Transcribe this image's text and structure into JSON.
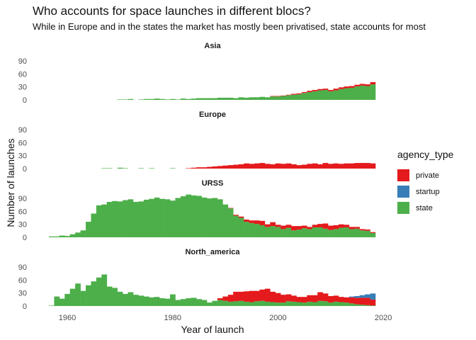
{
  "chart_data": {
    "type": "bar",
    "title": "Who accounts for space launches in different blocs?",
    "subtitle": "While in Europe and in the states the market has mostly been privatised, state accounts for most",
    "xlabel": "Year of launch",
    "ylabel": "Number of launches",
    "xlim": [
      1957,
      2018
    ],
    "x_ticks": [
      "1960",
      "1980",
      "2000",
      "2020"
    ],
    "y_ticks": [
      "0",
      "30",
      "60",
      "90"
    ],
    "ylim": [
      0,
      105
    ],
    "stacked": true,
    "grid": false,
    "legend": {
      "title": "agency_type",
      "placement": "right",
      "entries": [
        "private",
        "startup",
        "state"
      ]
    },
    "colors": {
      "private": "#E41A1C",
      "startup": "#377EB8",
      "state": "#4DAF4A"
    },
    "facets": [
      {
        "name": "Asia",
        "start_year": 1957,
        "series": {
          "state": [
            0,
            0,
            0,
            0,
            0,
            0,
            0,
            0,
            0,
            0,
            0,
            0,
            0,
            1,
            1,
            2,
            0,
            1,
            2,
            2,
            3,
            2,
            1,
            2,
            1,
            3,
            2,
            3,
            4,
            4,
            4,
            4,
            5,
            5,
            5,
            4,
            6,
            5,
            6,
            6,
            7,
            6,
            8,
            8,
            9,
            11,
            12,
            13,
            16,
            18,
            20,
            22,
            23,
            20,
            22,
            25,
            27,
            28,
            31,
            33,
            32,
            36
          ],
          "private": [
            0,
            0,
            0,
            0,
            0,
            0,
            0,
            0,
            0,
            0,
            0,
            0,
            0,
            0,
            0,
            0,
            0,
            0,
            0,
            0,
            0,
            0,
            0,
            0,
            0,
            0,
            0,
            0,
            0,
            0,
            0,
            0,
            0,
            0,
            0,
            0,
            0,
            0,
            0,
            0,
            0,
            0,
            1,
            1,
            1,
            1,
            2,
            2,
            2,
            3,
            3,
            3,
            3,
            3,
            4,
            4,
            4,
            4,
            4,
            4,
            4,
            5
          ],
          "startup": [
            0,
            0,
            0,
            0,
            0,
            0,
            0,
            0,
            0,
            0,
            0,
            0,
            0,
            0,
            0,
            0,
            0,
            0,
            0,
            0,
            0,
            0,
            0,
            0,
            0,
            0,
            0,
            0,
            0,
            0,
            0,
            0,
            0,
            0,
            0,
            0,
            0,
            0,
            0,
            0,
            0,
            0,
            0,
            0,
            0,
            0,
            0,
            0,
            0,
            0,
            0,
            0,
            0,
            0,
            0,
            0,
            0,
            0,
            0,
            0,
            0,
            0
          ]
        }
      },
      {
        "name": "Europe",
        "start_year": 1957,
        "series": {
          "state": [
            0,
            0,
            0,
            0,
            0,
            0,
            0,
            0,
            0,
            0,
            1,
            1,
            0,
            2,
            1,
            0,
            0,
            1,
            0,
            1,
            0,
            0,
            0,
            1,
            0,
            0,
            0,
            0,
            0,
            0,
            0,
            0,
            0,
            0,
            0,
            0,
            0,
            0,
            0,
            0,
            0,
            0,
            0,
            0,
            0,
            0,
            0,
            0,
            0,
            0,
            0,
            0,
            0,
            0,
            0,
            0,
            0,
            0,
            0,
            0,
            0,
            0
          ],
          "private": [
            0,
            0,
            0,
            0,
            0,
            0,
            0,
            0,
            0,
            0,
            0,
            0,
            0,
            0,
            0,
            0,
            0,
            0,
            0,
            0,
            0,
            0,
            0,
            0,
            0,
            0,
            1,
            2,
            3,
            3,
            4,
            5,
            6,
            7,
            8,
            9,
            10,
            12,
            11,
            12,
            13,
            11,
            10,
            12,
            11,
            12,
            10,
            8,
            9,
            11,
            12,
            10,
            13,
            11,
            12,
            11,
            12,
            12,
            13,
            13,
            13,
            12
          ],
          "startup": [
            0,
            0,
            0,
            0,
            0,
            0,
            0,
            0,
            0,
            0,
            0,
            0,
            0,
            0,
            0,
            0,
            0,
            0,
            0,
            0,
            0,
            0,
            0,
            0,
            0,
            0,
            0,
            0,
            0,
            0,
            0,
            0,
            0,
            0,
            0,
            0,
            0,
            0,
            0,
            0,
            0,
            0,
            0,
            0,
            0,
            0,
            0,
            0,
            0,
            0,
            0,
            0,
            0,
            0,
            0,
            0,
            0,
            0,
            0,
            0,
            0,
            0
          ]
        }
      },
      {
        "name": "URSS",
        "start_year": 1957,
        "series": {
          "state": [
            2,
            2,
            4,
            3,
            7,
            11,
            16,
            36,
            55,
            74,
            76,
            82,
            84,
            83,
            86,
            88,
            82,
            83,
            87,
            89,
            92,
            89,
            88,
            85,
            91,
            95,
            99,
            97,
            96,
            92,
            90,
            91,
            88,
            76,
            67,
            50,
            45,
            36,
            33,
            31,
            28,
            24,
            26,
            24,
            19,
            22,
            16,
            18,
            21,
            19,
            23,
            23,
            20,
            17,
            19,
            22,
            23,
            19,
            20,
            16,
            15,
            10
          ],
          "private": [
            0,
            0,
            0,
            0,
            0,
            0,
            0,
            0,
            0,
            0,
            0,
            0,
            0,
            0,
            0,
            0,
            0,
            0,
            0,
            0,
            0,
            0,
            0,
            0,
            0,
            0,
            0,
            0,
            0,
            0,
            0,
            0,
            0,
            0,
            1,
            2,
            3,
            5,
            6,
            8,
            10,
            6,
            9,
            5,
            8,
            7,
            10,
            8,
            6,
            5,
            6,
            8,
            12,
            10,
            9,
            8,
            6,
            5,
            4,
            3,
            3,
            2
          ],
          "startup": [
            0,
            0,
            0,
            0,
            0,
            0,
            0,
            0,
            0,
            0,
            0,
            0,
            0,
            0,
            0,
            0,
            0,
            0,
            0,
            0,
            0,
            0,
            0,
            0,
            0,
            0,
            0,
            0,
            0,
            0,
            0,
            0,
            0,
            0,
            0,
            0,
            0,
            0,
            0,
            0,
            0,
            0,
            0,
            0,
            0,
            0,
            0,
            0,
            0,
            0,
            0,
            0,
            0,
            0,
            0,
            0,
            0,
            0,
            0,
            0,
            0,
            0
          ]
        }
      },
      {
        "name": "North_america",
        "start_year": 1957,
        "series": {
          "state": [
            1,
            22,
            17,
            28,
            40,
            52,
            35,
            48,
            57,
            66,
            73,
            45,
            42,
            33,
            28,
            32,
            26,
            24,
            22,
            20,
            21,
            18,
            17,
            27,
            14,
            16,
            18,
            19,
            16,
            14,
            8,
            12,
            14,
            12,
            10,
            11,
            12,
            10,
            9,
            11,
            12,
            10,
            9,
            8,
            8,
            11,
            10,
            9,
            8,
            10,
            9,
            12,
            11,
            8,
            10,
            9,
            8,
            6,
            4,
            3,
            2,
            1
          ],
          "private": [
            0,
            0,
            0,
            0,
            0,
            0,
            0,
            0,
            0,
            0,
            0,
            0,
            0,
            0,
            0,
            0,
            0,
            0,
            0,
            0,
            0,
            0,
            0,
            0,
            0,
            0,
            0,
            0,
            0,
            0,
            0,
            0,
            4,
            10,
            16,
            22,
            21,
            24,
            26,
            24,
            26,
            30,
            24,
            22,
            18,
            16,
            14,
            12,
            13,
            15,
            16,
            20,
            18,
            15,
            14,
            12,
            12,
            14,
            15,
            16,
            17,
            14
          ],
          "startup": [
            0,
            0,
            0,
            0,
            0,
            0,
            0,
            0,
            0,
            0,
            0,
            0,
            0,
            0,
            0,
            0,
            0,
            0,
            0,
            0,
            0,
            0,
            0,
            0,
            0,
            0,
            0,
            0,
            0,
            0,
            0,
            0,
            0,
            0,
            0,
            0,
            0,
            0,
            0,
            0,
            0,
            0,
            0,
            0,
            0,
            0,
            0,
            0,
            0,
            0,
            0,
            0,
            0,
            0,
            0,
            0,
            0,
            2,
            4,
            6,
            8,
            14
          ]
        }
      }
    ]
  }
}
